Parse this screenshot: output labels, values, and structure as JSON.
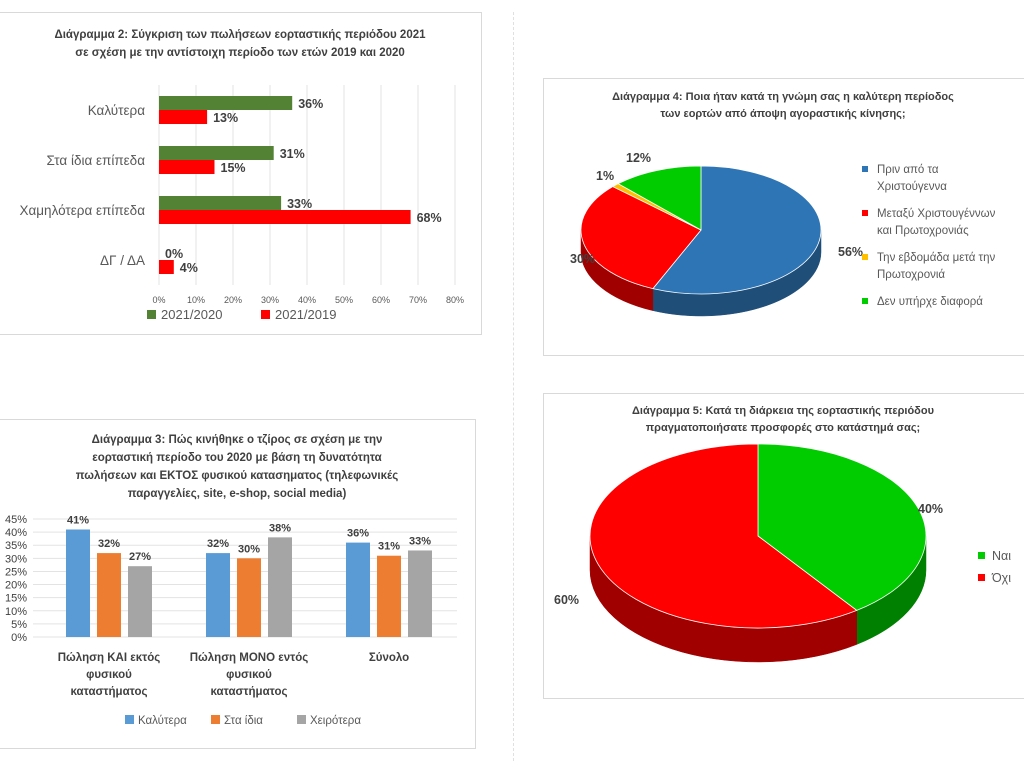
{
  "chart_data": [
    {
      "type": "bar",
      "orientation": "horizontal",
      "title": "Διάγραμμα 2: Σύγκριση των πωλήσεων εορταστικής περιόδου 2021 σε σχέση με την αντίστοιχη περίοδο των ετών 2019 και 2020",
      "title_lines": [
        "Διάγραμμα 2: Σύγκριση των πωλήσεων εορταστικής περιόδου 2021",
        "σε σχέση με την αντίστοιχη περίοδο των ετών 2019 και 2020"
      ],
      "categories": [
        "Καλύτερα",
        "Στα ίδια επίπεδα",
        "Χαμηλότερα επίπεδα",
        "ΔΓ / ΔΑ"
      ],
      "series": [
        {
          "name": "2021/2020",
          "values": [
            36,
            31,
            33,
            0
          ],
          "labels": [
            "36%",
            "31%",
            "33%",
            "0%"
          ],
          "color": "#548235"
        },
        {
          "name": "2021/2019",
          "values": [
            13,
            15,
            68,
            4
          ],
          "labels": [
            "13%",
            "15%",
            "68%",
            "4%"
          ],
          "color": "#ff0000"
        }
      ],
      "xlim": [
        0,
        80
      ],
      "ticks": [
        "0%",
        "10%",
        "20%",
        "30%",
        "40%",
        "50%",
        "60%",
        "70%",
        "80%"
      ],
      "grid": true,
      "legend": "bottom"
    },
    {
      "type": "bar",
      "title": "Διάγραμμα 3: Πώς κινήθηκε ο τζίρος σε σχέση με την εορταστική περίοδο του 2020 με βάση τη δυνατότητα πωλήσεων και ΕΚΤΟΣ φυσικού κατασηματος (τηλεφωνικές παραγγελίες, site, e-shop, social media)",
      "title_lines": [
        "Διάγραμμα 3: Πώς κινήθηκε ο τζίρος σε σχέση με την",
        "εορταστική περίοδο του 2020 με βάση τη δυνατότητα",
        "πωλήσεων και ΕΚΤΟΣ φυσικού κατασηματος (τηλεφωνικές",
        "παραγγελίες, site, e-shop, social media)"
      ],
      "categories": [
        "Πώληση ΚΑΙ εκτός φυσικού καταστήματος",
        "Πώληση ΜΟΝΟ εντός φυσικού καταστήματος",
        "Σύνολο"
      ],
      "category_lines": [
        [
          "Πώληση ΚΑΙ εκτός",
          "φυσικού",
          "καταστήματος"
        ],
        [
          "Πώληση ΜΟΝΟ εντός",
          "φυσικού",
          "καταστήματος"
        ],
        [
          "Σύνολο"
        ]
      ],
      "series": [
        {
          "name": "Καλύτερα",
          "values": [
            41,
            32,
            36
          ],
          "labels": [
            "41%",
            "32%",
            "36%"
          ],
          "color": "#5b9bd5"
        },
        {
          "name": "Στα ίδια",
          "values": [
            32,
            30,
            31
          ],
          "labels": [
            "32%",
            "30%",
            "31%"
          ],
          "color": "#ed7d31"
        },
        {
          "name": "Χειρότερα",
          "values": [
            27,
            38,
            33
          ],
          "labels": [
            "27%",
            "38%",
            "33%"
          ],
          "color": "#a5a5a5"
        }
      ],
      "ylim": [
        0,
        45
      ],
      "ticks": [
        "0%",
        "5%",
        "10%",
        "15%",
        "20%",
        "25%",
        "30%",
        "35%",
        "40%",
        "45%"
      ],
      "grid": true,
      "legend": "bottom"
    },
    {
      "type": "pie",
      "title": "Διάγραμμα 4: Ποια ήταν κατά τη γνώμη σας η καλύτερη περίοδος των εορτών από άποψη αγοραστικής κίνησης;",
      "title_lines": [
        "Διάγραμμα 4: Ποια ήταν κατά τη γνώμη σας η καλύτερη περίοδος",
        "των εορτών από άποψη αγοραστικής κίνησης;"
      ],
      "slices": [
        {
          "name": "Πριν από τα Χριστούγεννα",
          "name_lines": [
            "Πριν από τα",
            "Χριστούγεννα"
          ],
          "value": 56,
          "label": "56%",
          "color": "#2e75b6",
          "side": "#1f4e79"
        },
        {
          "name": "Μεταξύ Χριστουγέννων και Πρωτοχρονιάς",
          "name_lines": [
            "Μεταξύ Χριστουγέννων",
            "και Πρωτοχρονιάς"
          ],
          "value": 30,
          "label": "30%",
          "color": "#ff0000",
          "side": "#a00000"
        },
        {
          "name": "Την εβδομάδα μετά την Πρωτοχρονιά",
          "name_lines": [
            "Την εβδομάδα μετά την",
            "Πρωτοχρονιά"
          ],
          "value": 1,
          "label": "1%",
          "color": "#ffc000",
          "side": "#b38600"
        },
        {
          "name": "Δεν υπήρχε διαφορά",
          "name_lines": [
            "Δεν υπήρχε διαφορά"
          ],
          "value": 12,
          "label": "12%",
          "color": "#00cc00",
          "side": "#008000"
        }
      ],
      "legend": "right"
    },
    {
      "type": "pie",
      "title": "Διάγραμμα 5: Κατά τη διάρκεια της εορταστικής περιόδου πραγματοποιήσατε προσφορές στο κατάστημά σας;",
      "title_lines": [
        "Διάγραμμα 5: Κατά τη διάρκεια της εορταστικής περιόδου",
        "πραγματοποιήσατε προσφορές στο κατάστημά σας;"
      ],
      "slices": [
        {
          "name": "Ναι",
          "name_lines": [
            "Ναι"
          ],
          "value": 40,
          "label": "40%",
          "color": "#00cc00",
          "side": "#008000"
        },
        {
          "name": "Όχι",
          "name_lines": [
            "Όχι"
          ],
          "value": 60,
          "label": "60%",
          "color": "#ff0000",
          "side": "#a00000"
        }
      ],
      "legend": "right"
    }
  ]
}
